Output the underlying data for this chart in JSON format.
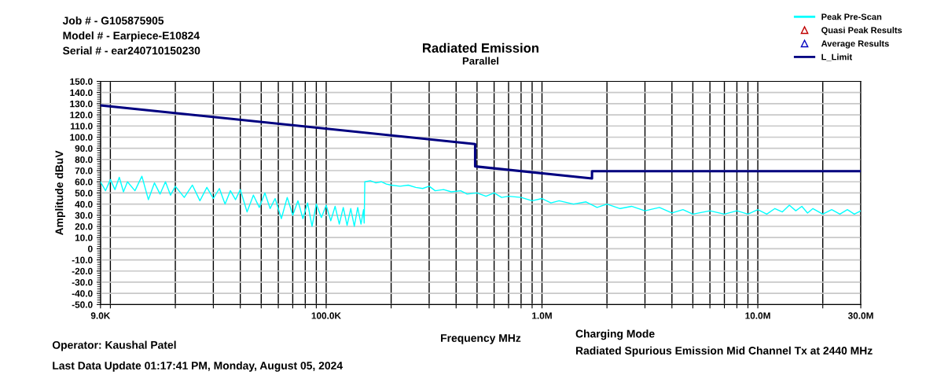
{
  "chart_data": {
    "type": "line",
    "title": "Radiated Emission",
    "subtitle": "Parallel",
    "xlabel": "Frequency MHz",
    "ylabel": "Amplitude dBuV",
    "annotations": [
      "Job # - G105875905",
      "Model # - Earpiece-E10824",
      "Serial # - ear240710150230",
      "Operator: Kaushal Patel",
      "Last Data Update 01:17:41 PM, Monday, August 05, 2024",
      "Charging Mode",
      "Radiated Spurious Emission Mid Channel Tx at 2440 MHz"
    ],
    "log": "x",
    "grid": true,
    "legend": "top right",
    "xlim": [
      9000,
      30000000
    ],
    "xticks": [
      {
        "value": 9000,
        "label": "9.0K"
      },
      {
        "value": 10000,
        "label": null
      },
      {
        "value": 20000,
        "label": null
      },
      {
        "value": 30000,
        "label": null
      },
      {
        "value": 40000,
        "label": null
      },
      {
        "value": 50000,
        "label": null
      },
      {
        "value": 60000,
        "label": null
      },
      {
        "value": 70000,
        "label": null
      },
      {
        "value": 80000,
        "label": null
      },
      {
        "value": 90000,
        "label": null
      },
      {
        "value": 100000,
        "label": "100.0K"
      },
      {
        "value": 200000,
        "label": null
      },
      {
        "value": 300000,
        "label": null
      },
      {
        "value": 400000,
        "label": null
      },
      {
        "value": 500000,
        "label": null
      },
      {
        "value": 600000,
        "label": null
      },
      {
        "value": 700000,
        "label": null
      },
      {
        "value": 800000,
        "label": null
      },
      {
        "value": 900000,
        "label": null
      },
      {
        "value": 1000000,
        "label": "1.0M"
      },
      {
        "value": 2000000,
        "label": null
      },
      {
        "value": 3000000,
        "label": null
      },
      {
        "value": 4000000,
        "label": null
      },
      {
        "value": 5000000,
        "label": null
      },
      {
        "value": 6000000,
        "label": null
      },
      {
        "value": 7000000,
        "label": null
      },
      {
        "value": 8000000,
        "label": null
      },
      {
        "value": 9000000,
        "label": null
      },
      {
        "value": 10000000,
        "label": "10.0M"
      },
      {
        "value": 20000000,
        "label": null
      },
      {
        "value": 30000000,
        "label": "30.0M"
      }
    ],
    "ylim": [
      -50,
      150
    ],
    "yticks": [
      {
        "value": -50,
        "label": "-50.0"
      },
      {
        "value": -40,
        "label": "-40.0"
      },
      {
        "value": -30,
        "label": "-30.0"
      },
      {
        "value": -20,
        "label": "-20.0"
      },
      {
        "value": -10,
        "label": "-10.0"
      },
      0,
      {
        "value": 10,
        "label": "10.0"
      },
      {
        "value": 20,
        "label": "20.0"
      },
      {
        "value": 30,
        "label": "30.0"
      },
      {
        "value": 40,
        "label": "40.0"
      },
      {
        "value": 50,
        "label": "50.0"
      },
      {
        "value": 60,
        "label": "60.0"
      },
      {
        "value": 70,
        "label": "70.0"
      },
      {
        "value": 80,
        "label": "80.0"
      },
      {
        "value": 90,
        "label": "90.0"
      },
      {
        "value": 100,
        "label": "100.0"
      },
      {
        "value": 110,
        "label": "110.0"
      },
      {
        "value": 120,
        "label": "120.0"
      },
      {
        "value": 130,
        "label": "130.0"
      },
      {
        "value": 140,
        "label": "140.0"
      },
      {
        "value": 150,
        "label": "150.0"
      }
    ],
    "series": [
      {
        "name": "Peak Pre-Scan",
        "color": "#00ffff",
        "marker": "none",
        "x": [
          9000,
          9500,
          10000,
          10500,
          11000,
          11500,
          12000,
          13000,
          14000,
          15000,
          16000,
          17000,
          18000,
          19000,
          20000,
          22000,
          24000,
          26000,
          28000,
          30000,
          32000,
          34000,
          36000,
          38000,
          40000,
          43000,
          46000,
          49000,
          52000,
          55000,
          58000,
          62000,
          66000,
          70000,
          74000,
          78000,
          82000,
          86000,
          90000,
          95000,
          100000,
          105000,
          110000,
          115000,
          120000,
          125000,
          130000,
          135000,
          140000,
          145000,
          149000,
          150000,
          151000,
          160000,
          170000,
          180000,
          190000,
          200000,
          220000,
          240000,
          260000,
          280000,
          300000,
          320000,
          350000,
          380000,
          420000,
          450000,
          500000,
          550000,
          600000,
          650000,
          700000,
          800000,
          900000,
          1000000,
          1100000,
          1200000,
          1400000,
          1600000,
          1800000,
          2000000,
          2300000,
          2600000,
          3000000,
          3500000,
          4000000,
          4500000,
          5000000,
          6000000,
          7000000,
          8000000,
          9000000,
          10000000,
          11000000,
          12000000,
          13000000,
          14000000,
          15000000,
          16000000,
          17000000,
          18000000,
          20000000,
          22000000,
          24000000,
          26000000,
          28000000,
          30000000
        ],
        "values": [
          60,
          52,
          62,
          53,
          64,
          51,
          60,
          52,
          65,
          44,
          59,
          49,
          60,
          48,
          56,
          46,
          57,
          43,
          55,
          45,
          54,
          40,
          52,
          44,
          53,
          33,
          48,
          37,
          50,
          36,
          45,
          27,
          46,
          30,
          43,
          27,
          41,
          20,
          40,
          28,
          39,
          25,
          38,
          22,
          37,
          21,
          36,
          20,
          37,
          22,
          35,
          23,
          60,
          61,
          59,
          60,
          58,
          57,
          56,
          57,
          55,
          54,
          56,
          52,
          53,
          51,
          52,
          49,
          50,
          47,
          50,
          46,
          47,
          46,
          43,
          45,
          41,
          43,
          40,
          42,
          37,
          40,
          36,
          38,
          34,
          37,
          32,
          35,
          31,
          34,
          31,
          34,
          31,
          35,
          31,
          36,
          33,
          39,
          34,
          38,
          32,
          36,
          31,
          35,
          31,
          35,
          31,
          34
        ]
      },
      {
        "name": "Quasi Peak Results",
        "type": "scatter",
        "color": "#c00000",
        "marker": "triangle"
      },
      {
        "name": "Average Results",
        "type": "scatter",
        "color": "#0000c0",
        "marker": "triangle"
      },
      {
        "name": "L_Limit",
        "color": "#000080",
        "marker": "none",
        "x": [
          9000,
          490000,
          490000,
          1705000,
          1705000,
          30000000
        ],
        "values": [
          128.5,
          93.8,
          73.8,
          63.0,
          69.5,
          69.5
        ]
      }
    ]
  }
}
